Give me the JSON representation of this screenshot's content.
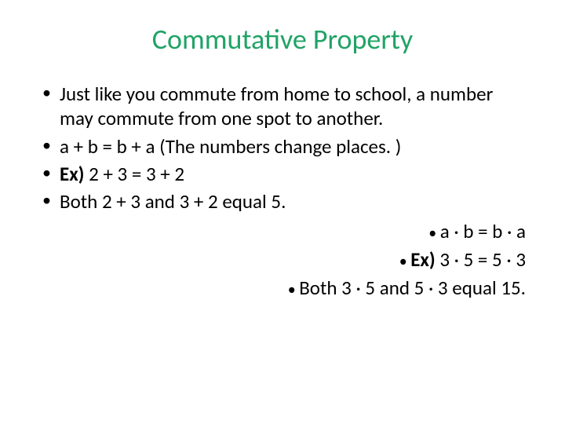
{
  "title": "Commutative Property",
  "title_color": "#21a366",
  "text_color": "#000000",
  "background_color": "#ffffff",
  "font_family": "Calibri, Arial, sans-serif",
  "title_fontsize": 36,
  "body_fontsize": 25,
  "bullets_left": [
    {
      "text": "Just like you commute from home to school, a number may commute from one spot to another."
    },
    {
      "text": "a + b = b + a   (The numbers change places. )"
    },
    {
      "prefix": "Ex)",
      "text": " 2 + 3 = 3 + 2"
    },
    {
      "text": "Both 2 + 3 and 3 + 2 equal 5."
    }
  ],
  "bullets_right": [
    {
      "text": "a · b = b · a"
    },
    {
      "prefix": "Ex)",
      "text": " 3 · 5 = 5 · 3"
    },
    {
      "text": "Both 3 · 5 and 5 · 3 equal 15."
    }
  ]
}
